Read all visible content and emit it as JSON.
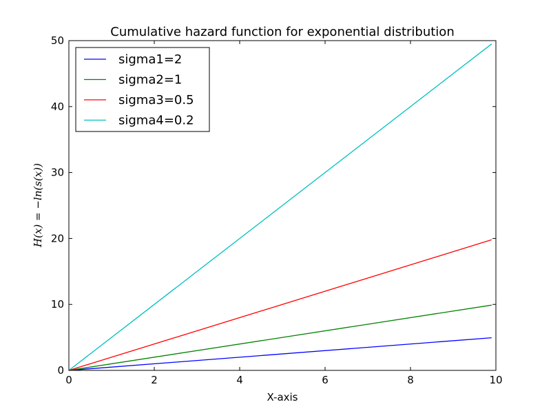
{
  "chart_data": {
    "type": "line",
    "title": "Cumulative hazard function for exponential distribution",
    "xlabel": "X-axis",
    "ylabel": "H(x) = −ln(s(x))",
    "xlim": [
      0,
      10
    ],
    "ylim": [
      0,
      50
    ],
    "x_ticks": [
      0,
      2,
      4,
      6,
      8,
      10
    ],
    "y_ticks": [
      0,
      10,
      20,
      30,
      40,
      50
    ],
    "grid": false,
    "legend_position": "top-left",
    "series": [
      {
        "name": "sigma1=2",
        "color": "#0000ff",
        "x": [
          0,
          9.9
        ],
        "y": [
          0,
          4.95
        ]
      },
      {
        "name": "sigma2=1",
        "color": "#008000",
        "x": [
          0,
          9.9
        ],
        "y": [
          0,
          9.9
        ]
      },
      {
        "name": "sigma3=0.5",
        "color": "#ff0000",
        "x": [
          0,
          9.9
        ],
        "y": [
          0,
          19.8
        ]
      },
      {
        "name": "sigma4=0.2",
        "color": "#00bfbf",
        "x": [
          0,
          9.9
        ],
        "y": [
          0,
          49.5
        ]
      }
    ]
  }
}
